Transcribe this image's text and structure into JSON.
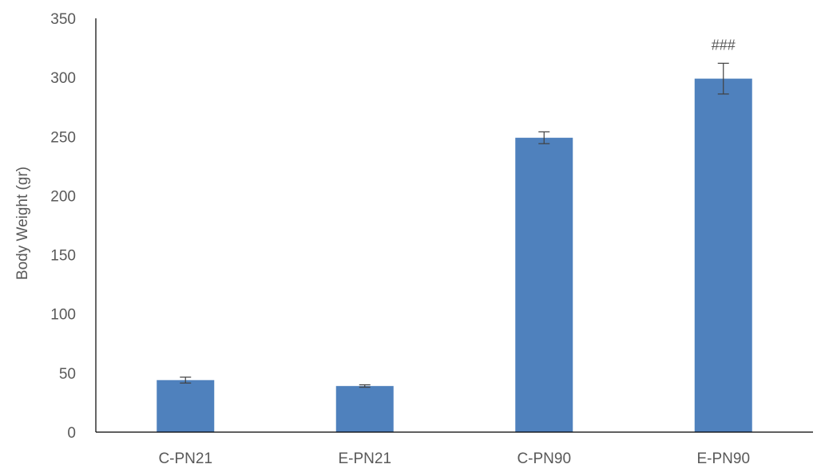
{
  "chart_data": {
    "type": "bar",
    "title": "",
    "xlabel": "",
    "ylabel": "Body Weight (gr)",
    "categories": [
      "C-PN21",
      "E-PN21",
      "C-PN90",
      "E-PN90"
    ],
    "values": [
      44,
      39,
      249,
      299
    ],
    "error": [
      2.5,
      1,
      5,
      13
    ],
    "annotations": [
      "",
      "",
      "",
      "###"
    ],
    "ylim": [
      0,
      350
    ],
    "yticks": [
      0,
      50,
      100,
      150,
      200,
      250,
      300,
      350
    ],
    "grid": false,
    "legend": "none",
    "bar_color": "#4f81bd",
    "axis_color": "#000000",
    "text_color": "#595959",
    "errorbar_color": "#404040"
  }
}
